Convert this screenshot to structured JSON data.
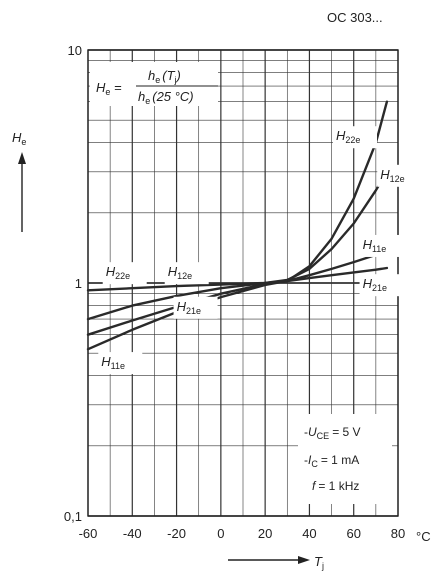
{
  "chart_data": {
    "type": "line",
    "header": "OC 303...",
    "ylabel": {
      "main": "H",
      "sub": "e"
    },
    "xlabel": {
      "main": "T",
      "sub": "j"
    },
    "x_unit": "°C",
    "y_scale": "log",
    "ylim": [
      0.1,
      10
    ],
    "xlim": [
      -60,
      80
    ],
    "x_ticks": [
      "-60",
      "-40",
      "-20",
      "0",
      "20",
      "40",
      "60",
      "80"
    ],
    "y_ticks": [
      "0,1",
      "1",
      "10"
    ],
    "grid": true,
    "formula": {
      "lhs_main": "H",
      "lhs_sub": "e",
      "num_main": "h",
      "num_sub": "e",
      "num_arg": "(T",
      "num_arg_sub": "j",
      "num_close": ")",
      "den_main": "h",
      "den_sub": "e",
      "den_arg": "(25 °C)"
    },
    "conditions": [
      {
        "prefix": "-",
        "main": "U",
        "sub": "CE",
        "value": "= 5 V"
      },
      {
        "prefix": "-",
        "main": "I",
        "sub": "C",
        "value": "= 1 mA"
      },
      {
        "prefix": "",
        "main": "f",
        "sub": "",
        "value": "= 1 kHz"
      }
    ],
    "series": [
      {
        "name": "H22e",
        "x": [
          -60,
          -40,
          -20,
          0,
          20,
          30,
          40,
          50,
          60,
          70,
          75
        ],
        "values": [
          0.93,
          0.95,
          0.97,
          0.985,
          1.0,
          1.02,
          1.18,
          1.55,
          2.3,
          4.0,
          6.0
        ]
      },
      {
        "name": "H12e",
        "x": [
          -60,
          -40,
          -20,
          0,
          20,
          30,
          40,
          50,
          60,
          70,
          75
        ],
        "values": [
          0.7,
          0.8,
          0.88,
          0.95,
          1.0,
          1.03,
          1.15,
          1.4,
          1.8,
          2.5,
          3.0
        ]
      },
      {
        "name": "H11e",
        "x": [
          -60,
          -40,
          -20,
          0,
          20,
          30,
          40,
          50,
          60,
          70,
          75
        ],
        "values": [
          0.52,
          0.63,
          0.75,
          0.87,
          0.98,
          1.02,
          1.08,
          1.15,
          1.23,
          1.32,
          1.37
        ]
      },
      {
        "name": "H21e",
        "x": [
          -60,
          -40,
          -20,
          0,
          20,
          30,
          40,
          50,
          60,
          70,
          75
        ],
        "values": [
          0.6,
          0.69,
          0.79,
          0.9,
          0.99,
          1.02,
          1.05,
          1.08,
          1.11,
          1.14,
          1.16
        ]
      }
    ],
    "labels": [
      {
        "series": "H22e",
        "main": "H",
        "sub": "22e",
        "at": [
          -52,
          1.07
        ]
      },
      {
        "series": "H12e",
        "main": "H",
        "sub": "12e",
        "at": [
          -24,
          1.07
        ]
      },
      {
        "series": "H21e",
        "main": "H",
        "sub": "21e",
        "at": [
          -20,
          0.76
        ]
      },
      {
        "series": "H11e",
        "main": "H",
        "sub": "11e",
        "at": [
          -54,
          0.44
        ]
      },
      {
        "series": "H22e",
        "main": "H",
        "sub": "22e",
        "at": [
          52,
          4.1
        ]
      },
      {
        "series": "H12e",
        "main": "H",
        "sub": "12e",
        "at": [
          72,
          2.8
        ]
      },
      {
        "series": "H11e",
        "main": "H",
        "sub": "11e",
        "at": [
          64,
          1.4
        ]
      },
      {
        "series": "H21e",
        "main": "H",
        "sub": "21e",
        "at": [
          64,
          0.95
        ]
      }
    ]
  }
}
